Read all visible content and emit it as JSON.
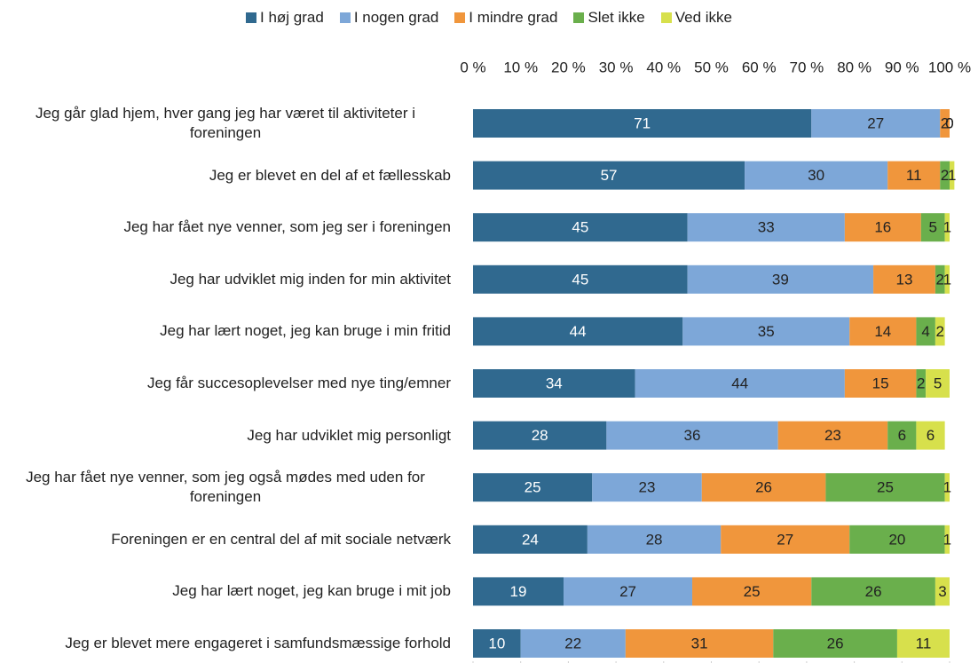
{
  "chart_data": {
    "type": "bar",
    "orientation": "horizontal",
    "stacked": true,
    "categories": [
      "Jeg går glad hjem, hver gang jeg har været til aktiviteter i foreningen",
      "Jeg er blevet en del af et fællesskab",
      "Jeg har fået nye venner, som jeg ser i foreningen",
      "Jeg har udviklet mig inden for min aktivitet",
      "Jeg har lært noget, jeg kan bruge i min fritid",
      "Jeg får succesoplevelser med nye ting/emner",
      "Jeg har udviklet mig personligt",
      "Jeg har fået nye venner, som jeg også mødes med uden for foreningen",
      "Foreningen er en central del af mit sociale netværk",
      "Jeg har lært noget, jeg kan bruge i mit job",
      "Jeg er blevet mere engageret i samfundsmæssige forhold"
    ],
    "series": [
      {
        "name": "I høj grad",
        "color": "#30698f",
        "values": [
          71,
          57,
          45,
          45,
          44,
          34,
          28,
          25,
          24,
          19,
          10
        ]
      },
      {
        "name": "I nogen grad",
        "color": "#7da7d8",
        "values": [
          27,
          30,
          33,
          39,
          35,
          44,
          36,
          23,
          28,
          27,
          22
        ]
      },
      {
        "name": "I mindre grad",
        "color": "#f0963c",
        "values": [
          2,
          11,
          16,
          13,
          14,
          15,
          23,
          26,
          27,
          25,
          31
        ]
      },
      {
        "name": "Slet ikke",
        "color": "#6aaf4c",
        "values": [
          0,
          2,
          5,
          2,
          4,
          2,
          6,
          25,
          20,
          26,
          26
        ]
      },
      {
        "name": "Ved ikke",
        "color": "#d7e04c",
        "values": [
          0,
          1,
          1,
          1,
          2,
          5,
          6,
          1,
          1,
          3,
          11
        ]
      }
    ],
    "xlim": [
      0,
      100
    ],
    "xticks": [
      {
        "value": 0,
        "label": "0 %"
      },
      {
        "value": 10,
        "label": "10 %"
      },
      {
        "value": 20,
        "label": "20 %"
      },
      {
        "value": 30,
        "label": "30 %"
      },
      {
        "value": 40,
        "label": "40 %"
      },
      {
        "value": 50,
        "label": "50 %"
      },
      {
        "value": 60,
        "label": "60 %"
      },
      {
        "value": 70,
        "label": "70 %"
      },
      {
        "value": 80,
        "label": "80 %"
      },
      {
        "value": 90,
        "label": "90 %"
      },
      {
        "value": 100,
        "label": "100 %"
      }
    ],
    "legend": "top"
  }
}
